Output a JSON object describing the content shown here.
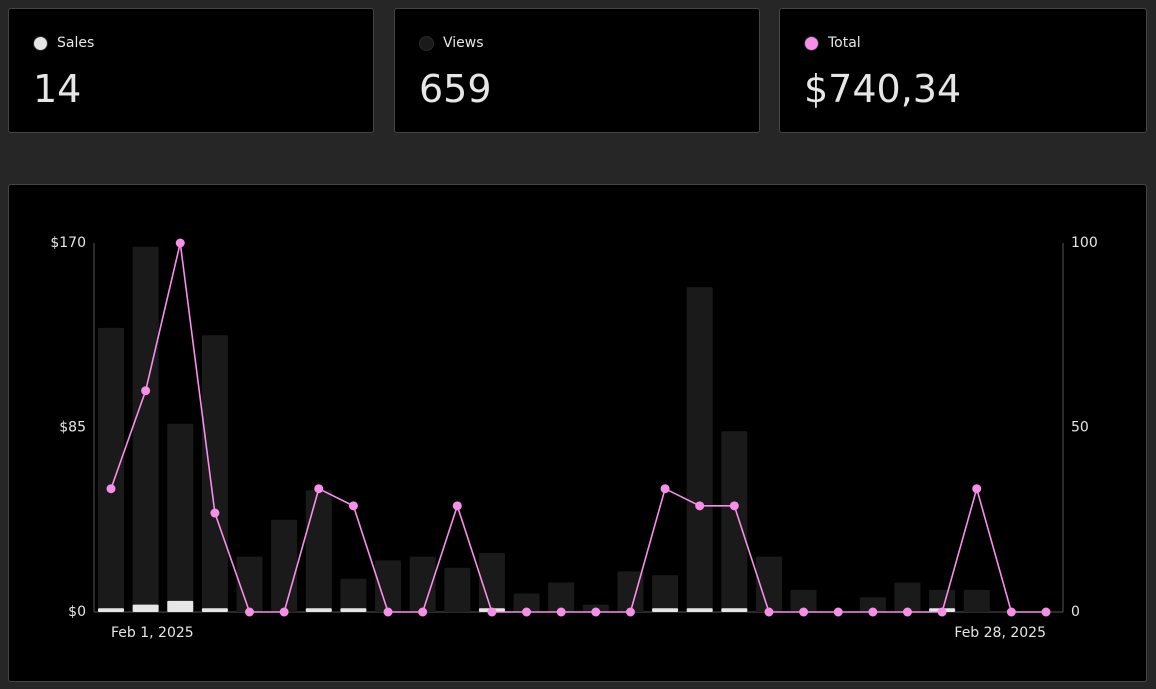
{
  "summary": [
    "14",
    "659",
    "$740,34"
  ],
  "chart_data": {
    "type": "bar-line",
    "categories": [
      "Feb 1, 2025",
      null,
      null,
      null,
      null,
      null,
      null,
      null,
      null,
      null,
      null,
      null,
      null,
      null,
      null,
      null,
      null,
      null,
      null,
      null,
      null,
      null,
      null,
      null,
      null,
      null,
      null,
      "Feb 28, 2025"
    ],
    "series": [
      {
        "name": "Sales",
        "color": "#e6e6e6",
        "type": "bar",
        "axis": "y2",
        "values": [
          1,
          2,
          3,
          1,
          0,
          0,
          1,
          1,
          0,
          0,
          0,
          1,
          0,
          0,
          0,
          0,
          1,
          1,
          1,
          0,
          0,
          0,
          0,
          0,
          1,
          0,
          0,
          0
        ]
      },
      {
        "name": "Views",
        "color": "#1a1a1a",
        "type": "bar",
        "axis": "y2",
        "values": [
          77,
          99,
          51,
          75,
          15,
          25,
          33,
          9,
          14,
          15,
          12,
          16,
          5,
          8,
          2,
          11,
          10,
          88,
          49,
          15,
          6,
          0,
          4,
          8,
          6,
          6,
          0,
          0
        ]
      },
      {
        "name": "Total",
        "color": "#f78ee8",
        "type": "line",
        "values": [
          56.8,
          101.94,
          170,
          45.6,
          0,
          0,
          56.8,
          48.9,
          0,
          0,
          48.9,
          0,
          0,
          0,
          0,
          0,
          56.8,
          48.9,
          48.9,
          0,
          0,
          0,
          0,
          0,
          0,
          56.8,
          0,
          0
        ]
      }
    ],
    "ylim": [
      0,
      170
    ],
    "yticks": [
      {
        "value": 0,
        "label": "$0"
      },
      {
        "value": 85,
        "label": "$85"
      },
      {
        "value": 170,
        "label": "$170"
      }
    ],
    "y2lim": [
      0,
      100
    ],
    "y2ticks": [
      0,
      50,
      100
    ],
    "grid": false
  }
}
